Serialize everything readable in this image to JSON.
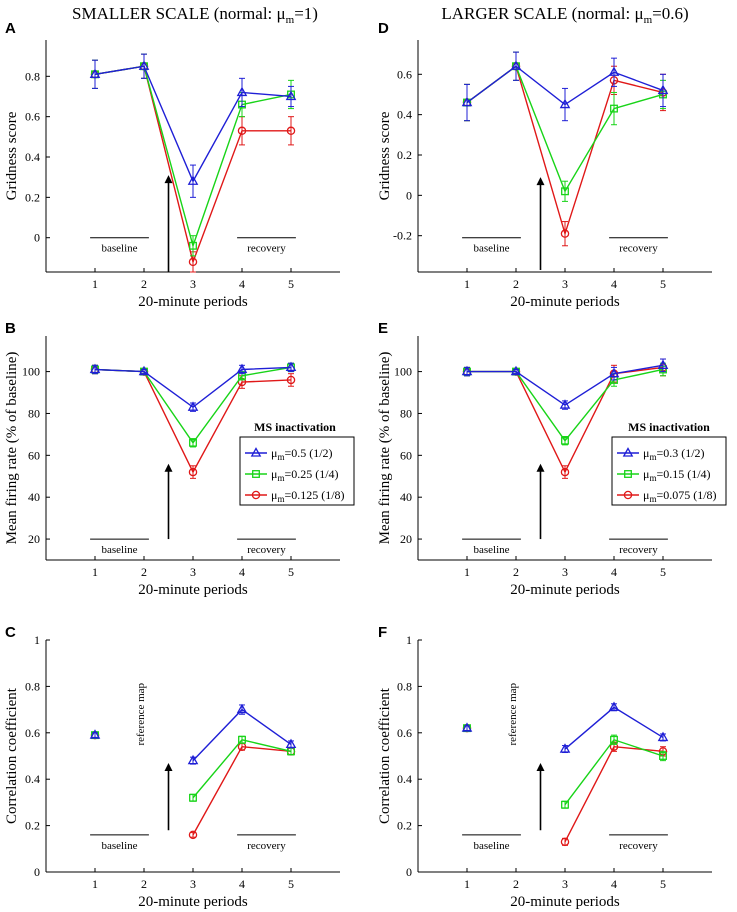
{
  "columns": [
    {
      "title_prefix": "SMALLER SCALE (normal: ",
      "mu": "μ",
      "mu_sub": "m",
      "title_suffix": "=1)"
    },
    {
      "title_prefix": "LARGER SCALE (normal: ",
      "mu": "μ",
      "mu_sub": "m",
      "title_suffix": "=0.6)"
    }
  ],
  "colors": {
    "blue": "#1f1fd6",
    "green": "#18d418",
    "red": "#e01818"
  },
  "baseline_label": "baseline",
  "recovery_label": "recovery",
  "reference_map_label": "reference map",
  "chart_data": [
    {
      "panel": "A",
      "type": "line",
      "column": 0,
      "xlabel": "20-minute periods",
      "ylabel": "Gridness score",
      "x": [
        1,
        2,
        3,
        4,
        5
      ],
      "xlim": [
        0,
        6
      ],
      "ylim": [
        -0.17,
        0.98
      ],
      "yticks": [
        0,
        0.2,
        0.4,
        0.6,
        0.8
      ],
      "ytick_labels": [
        "0",
        "0.2",
        "0.4",
        "0.6",
        "0.8"
      ],
      "series": [
        {
          "name": "μm=0.5 (1/2)",
          "color": "blue",
          "marker": "triangle",
          "values": [
            0.81,
            0.85,
            0.28,
            0.72,
            0.7
          ],
          "err": [
            0.07,
            0.06,
            0.08,
            0.07,
            0.05
          ]
        },
        {
          "name": "μm=0.25 (1/4)",
          "color": "green",
          "marker": "square",
          "values": [
            0.81,
            0.85,
            -0.04,
            0.66,
            0.71
          ],
          "err": [
            0.07,
            0.06,
            0.05,
            0.06,
            0.07
          ]
        },
        {
          "name": "μm=0.125 (1/8)",
          "color": "red",
          "marker": "circle",
          "values": [
            0.81,
            0.85,
            -0.12,
            0.53,
            0.53
          ],
          "err": [
            0.07,
            0.06,
            0.05,
            0.07,
            0.07
          ]
        }
      ],
      "baseline_y": 0.0,
      "recovery_y": 0.0,
      "arrow_from": -0.17,
      "arrow_to": 0.31,
      "show_legend": false,
      "reference_map": false
    },
    {
      "panel": "D",
      "type": "line",
      "column": 1,
      "xlabel": "20-minute periods",
      "ylabel": "Gridness score",
      "x": [
        1,
        2,
        3,
        4,
        5
      ],
      "xlim": [
        0,
        6
      ],
      "ylim": [
        -0.38,
        0.77
      ],
      "yticks": [
        -0.2,
        0,
        0.2,
        0.4,
        0.6
      ],
      "ytick_labels": [
        "-0.2",
        "0",
        "0.2",
        "0.4",
        "0.6"
      ],
      "series": [
        {
          "name": "μm=0.3 (1/2)",
          "color": "blue",
          "marker": "triangle",
          "values": [
            0.46,
            0.64,
            0.45,
            0.61,
            0.52
          ],
          "err": [
            0.09,
            0.07,
            0.08,
            0.07,
            0.08
          ]
        },
        {
          "name": "μm=0.15 (1/4)",
          "color": "green",
          "marker": "square",
          "values": [
            0.46,
            0.64,
            0.02,
            0.43,
            0.5
          ],
          "err": [
            0.09,
            0.07,
            0.05,
            0.08,
            0.07
          ]
        },
        {
          "name": "μm=0.075 (1/8)",
          "color": "red",
          "marker": "circle",
          "values": [
            0.46,
            0.64,
            -0.19,
            0.57,
            0.51
          ],
          "err": [
            0.09,
            0.07,
            0.06,
            0.07,
            0.09
          ]
        }
      ],
      "baseline_y": -0.21,
      "recovery_y": -0.21,
      "arrow_from": -0.37,
      "arrow_to": 0.09,
      "show_legend": false,
      "reference_map": false
    },
    {
      "panel": "B",
      "type": "line",
      "column": 0,
      "xlabel": "20-minute periods",
      "ylabel": "Mean firing rate (% of baseline)",
      "x": [
        1,
        2,
        3,
        4,
        5
      ],
      "xlim": [
        0,
        6
      ],
      "ylim": [
        10,
        117
      ],
      "yticks": [
        20,
        40,
        60,
        80,
        100
      ],
      "ytick_labels": [
        "20",
        "40",
        "60",
        "80",
        "100"
      ],
      "series": [
        {
          "name": "μm=0.5 (1/2)",
          "label_prefix": "=0.5 (1/2)",
          "color": "blue",
          "marker": "triangle",
          "values": [
            101,
            100,
            83,
            101,
            102
          ],
          "err": [
            2,
            1,
            2,
            2,
            2
          ]
        },
        {
          "name": "μm=0.25 (1/4)",
          "label_prefix": "=0.25 (1/4)",
          "color": "green",
          "marker": "square",
          "values": [
            101,
            100,
            66,
            98,
            102
          ],
          "err": [
            2,
            1,
            2,
            2,
            2
          ]
        },
        {
          "name": "μm=0.125 (1/8)",
          "label_prefix": "=0.125 (1/8)",
          "color": "red",
          "marker": "circle",
          "values": [
            101,
            100,
            52,
            95,
            96
          ],
          "err": [
            2,
            1,
            3,
            3,
            3
          ]
        }
      ],
      "baseline_y": 20,
      "recovery_y": 20,
      "arrow_from": 20,
      "arrow_to": 56,
      "show_legend": true,
      "legend_title": "MS inactivation",
      "reference_map": false
    },
    {
      "panel": "E",
      "type": "line",
      "column": 1,
      "xlabel": "20-minute periods",
      "ylabel": "Mean firing rate (% of baseline)",
      "x": [
        1,
        2,
        3,
        4,
        5
      ],
      "xlim": [
        0,
        6
      ],
      "ylim": [
        10,
        117
      ],
      "yticks": [
        20,
        40,
        60,
        80,
        100
      ],
      "ytick_labels": [
        "20",
        "40",
        "60",
        "80",
        "100"
      ],
      "series": [
        {
          "name": "μm=0.3 (1/2)",
          "label_prefix": "=0.3 (1/2)",
          "color": "blue",
          "marker": "triangle",
          "values": [
            100,
            100,
            84,
            99,
            103
          ],
          "err": [
            2,
            1,
            2,
            3,
            3
          ]
        },
        {
          "name": "μm=0.15 (1/4)",
          "label_prefix": "=0.15 (1/4)",
          "color": "green",
          "marker": "square",
          "values": [
            100,
            100,
            67,
            96,
            101
          ],
          "err": [
            2,
            1,
            2,
            3,
            3
          ]
        },
        {
          "name": "μm=0.075 (1/8)",
          "label_prefix": "=0.075 (1/8)",
          "color": "red",
          "marker": "circle",
          "values": [
            100,
            100,
            52,
            99,
            102
          ],
          "err": [
            2,
            1,
            3,
            4,
            4
          ]
        }
      ],
      "baseline_y": 20,
      "recovery_y": 20,
      "arrow_from": 20,
      "arrow_to": 56,
      "show_legend": true,
      "legend_title": "MS inactivation",
      "reference_map": false
    },
    {
      "panel": "C",
      "type": "line",
      "column": 0,
      "xlabel": "20-minute periods",
      "ylabel": "Correlation coefficient",
      "x": [
        1,
        2,
        3,
        4,
        5
      ],
      "xlim": [
        0,
        6
      ],
      "ylim": [
        0,
        1
      ],
      "yticks": [
        0,
        0.2,
        0.4,
        0.6,
        0.8,
        1
      ],
      "ytick_labels": [
        "0",
        "0.2",
        "0.4",
        "0.6",
        "0.8",
        "1"
      ],
      "baseline_point": 0.59,
      "baseline_err": 0.01,
      "series": [
        {
          "name": "μm=0.5 (1/2)",
          "color": "blue",
          "marker": "triangle",
          "values": [
            0.59,
            null,
            0.48,
            0.7,
            0.55
          ],
          "err": [
            0.01,
            0,
            0.015,
            0.02,
            0.015
          ]
        },
        {
          "name": "μm=0.25 (1/4)",
          "color": "green",
          "marker": "square",
          "values": [
            0.59,
            null,
            0.32,
            0.57,
            0.52
          ],
          "err": [
            0.01,
            0,
            0.015,
            0.015,
            0.015
          ]
        },
        {
          "name": "μm=0.125 (1/8)",
          "color": "red",
          "marker": "circle",
          "values": [
            0.59,
            null,
            0.16,
            0.54,
            0.52
          ],
          "err": [
            0.01,
            0,
            0.01,
            0.015,
            0.015
          ]
        }
      ],
      "baseline_y": 0.16,
      "recovery_y": 0.16,
      "arrow_from": 0.18,
      "arrow_to": 0.47,
      "show_legend": false,
      "reference_map": true
    },
    {
      "panel": "F",
      "type": "line",
      "column": 1,
      "xlabel": "20-minute periods",
      "ylabel": "Correlation coefficient",
      "x": [
        1,
        2,
        3,
        4,
        5
      ],
      "xlim": [
        0,
        6
      ],
      "ylim": [
        0,
        1
      ],
      "yticks": [
        0,
        0.2,
        0.4,
        0.6,
        0.8,
        1
      ],
      "ytick_labels": [
        "0",
        "0.2",
        "0.4",
        "0.6",
        "0.8",
        "1"
      ],
      "baseline_point": 0.62,
      "baseline_err": 0.01,
      "series": [
        {
          "name": "μm=0.3 (1/2)",
          "color": "blue",
          "marker": "triangle",
          "values": [
            0.62,
            null,
            0.53,
            0.71,
            0.58
          ],
          "err": [
            0.01,
            0,
            0.015,
            0.015,
            0.015
          ]
        },
        {
          "name": "μm=0.15 (1/4)",
          "color": "green",
          "marker": "square",
          "values": [
            0.62,
            null,
            0.29,
            0.57,
            0.5
          ],
          "err": [
            0.01,
            0,
            0.015,
            0.02,
            0.02
          ]
        },
        {
          "name": "μm=0.075 (1/8)",
          "color": "red",
          "marker": "circle",
          "values": [
            0.62,
            null,
            0.13,
            0.54,
            0.52
          ],
          "err": [
            0.01,
            0,
            0.015,
            0.02,
            0.02
          ]
        }
      ],
      "baseline_y": 0.16,
      "recovery_y": 0.16,
      "arrow_from": 0.18,
      "arrow_to": 0.47,
      "show_legend": false,
      "reference_map": true
    }
  ]
}
